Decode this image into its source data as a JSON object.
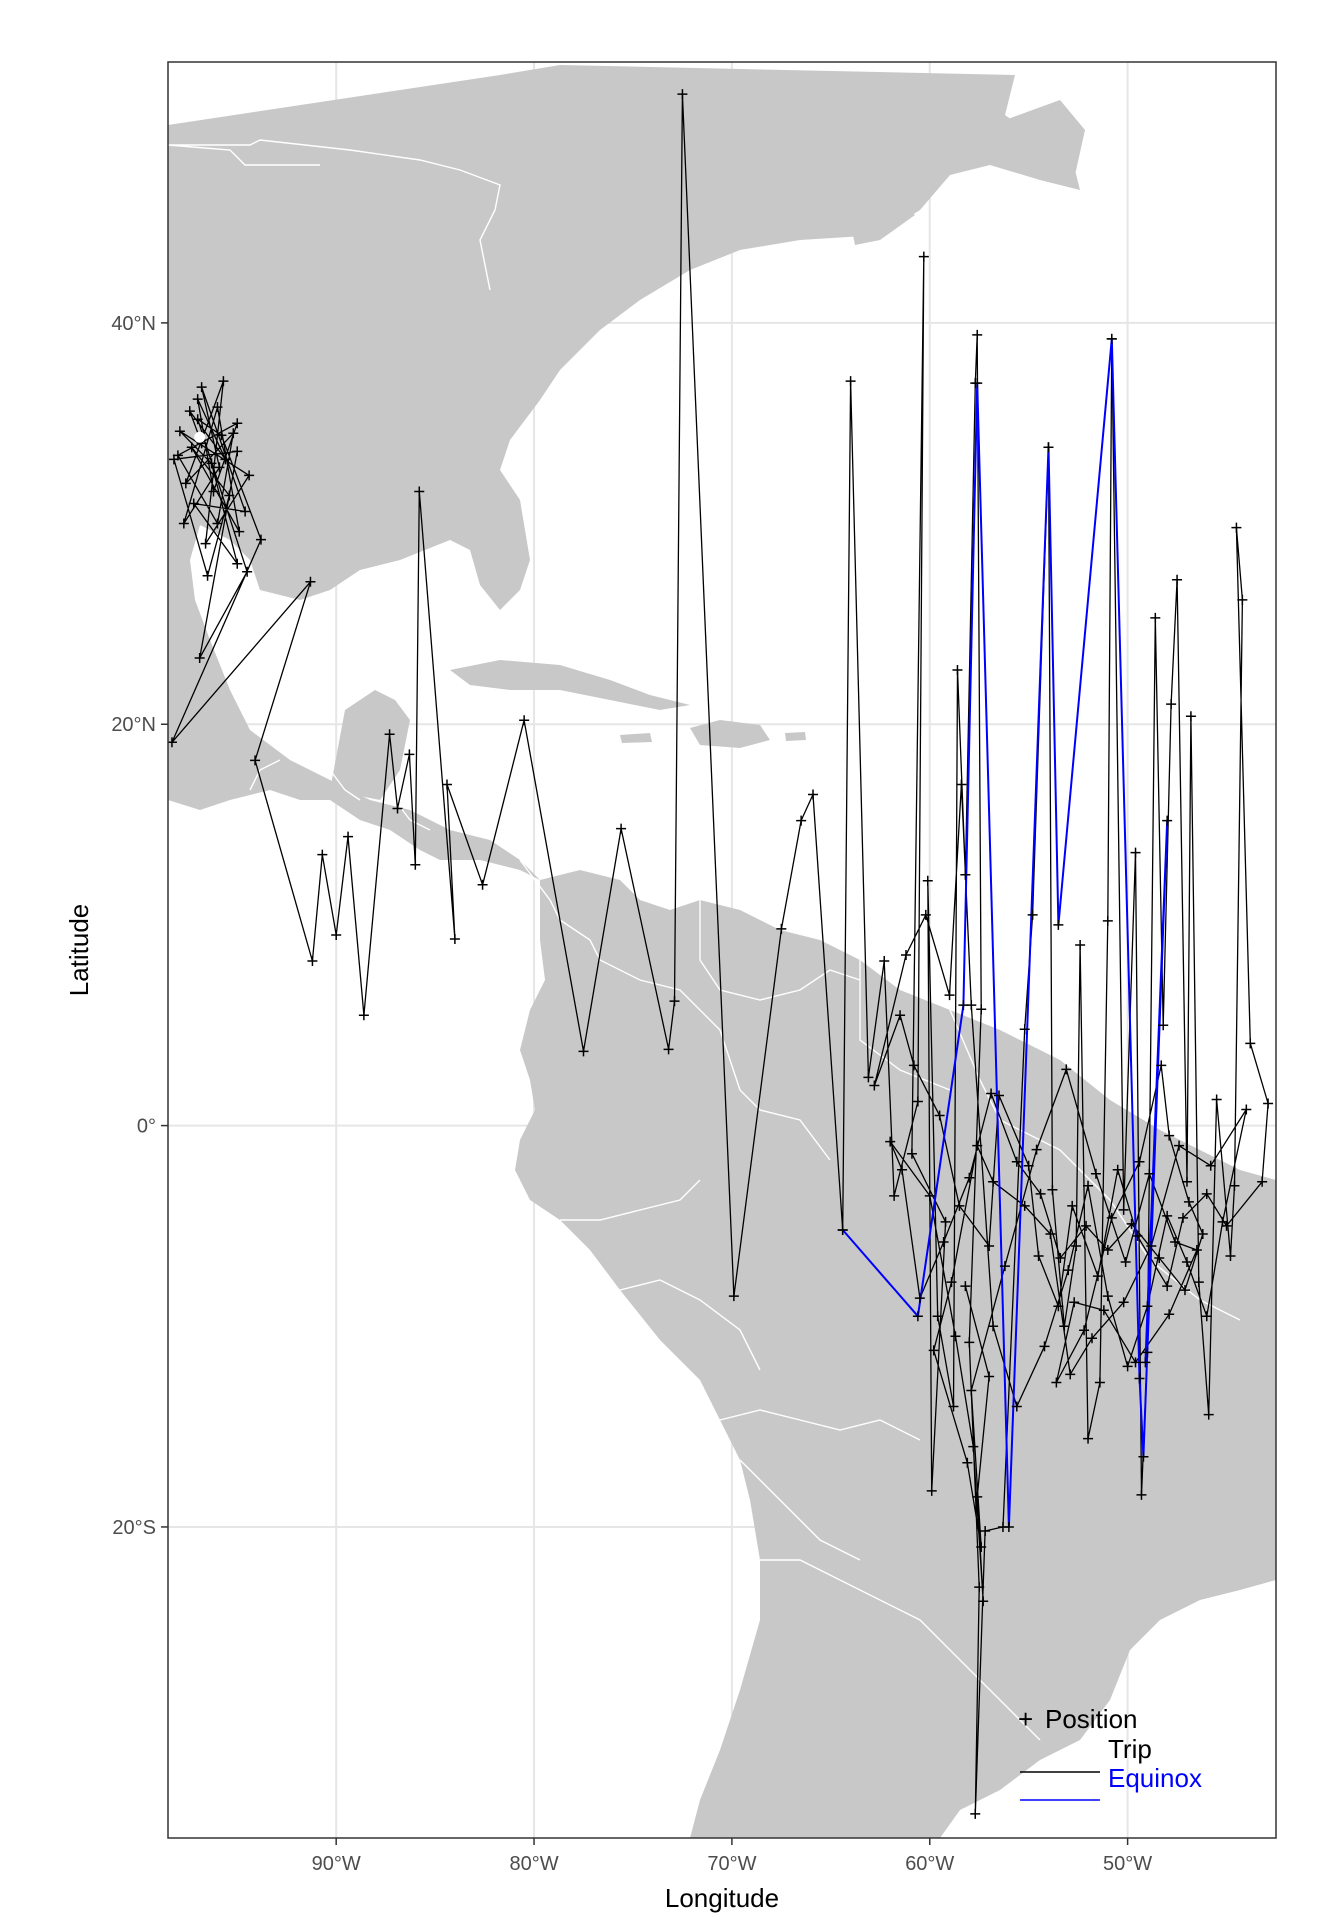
{
  "map": {
    "xlabel": "Longitude",
    "ylabel": "Latitude",
    "xlim": [
      -98.5,
      -42.5
    ],
    "ylim": [
      -35.5,
      53.0
    ],
    "x_ticks": [
      {
        "value": -90,
        "label": "90°W"
      },
      {
        "value": -80,
        "label": "80°W"
      },
      {
        "value": -70,
        "label": "70°W"
      },
      {
        "value": -60,
        "label": "60°W"
      },
      {
        "value": -50,
        "label": "50°W"
      }
    ],
    "y_ticks": [
      {
        "value": 40,
        "label": "40°N"
      },
      {
        "value": 20,
        "label": "20°N"
      },
      {
        "value": 0,
        "label": "0°"
      },
      {
        "value": -20,
        "label": "20°S"
      }
    ],
    "colors": {
      "land": "#c8c8c8",
      "border": "#ffffff",
      "grid": "#e6e6e6",
      "trip": "#000000",
      "equinox": "#0000ff",
      "deploy_marker": "#ffffff"
    },
    "legend": {
      "position": "bottom-right",
      "items": [
        {
          "label": "Position",
          "symbol": "+",
          "color": "#000000"
        },
        {
          "label": "Trip",
          "symbol": "line",
          "color": "#000000"
        },
        {
          "label": "Equinox",
          "symbol": "line",
          "color": "#0000ff"
        }
      ]
    }
  },
  "chart_data": {
    "type": "map-track",
    "deploy_site": [
      -96.9,
      34.3
    ],
    "track": [
      [
        -96.8,
        34.0
      ],
      [
        -97.4,
        35.6
      ],
      [
        -95.6,
        33.2
      ],
      [
        -97.0,
        36.2
      ],
      [
        -96.2,
        31.6
      ],
      [
        -95.0,
        35.0
      ],
      [
        -98.0,
        33.4
      ],
      [
        -96.0,
        30.0
      ],
      [
        -95.2,
        34.5
      ],
      [
        -97.6,
        32.0
      ],
      [
        -95.7,
        37.1
      ],
      [
        -96.6,
        29.0
      ],
      [
        -94.4,
        32.4
      ],
      [
        -97.9,
        34.6
      ],
      [
        -96.3,
        33.0
      ],
      [
        -95.0,
        28.0
      ],
      [
        -97.2,
        31.0
      ],
      [
        -94.6,
        30.6
      ],
      [
        -96.8,
        36.8
      ],
      [
        -95.9,
        32.8
      ],
      [
        -97.7,
        30.0
      ],
      [
        -96.0,
        35.8
      ],
      [
        -94.9,
        29.6
      ],
      [
        -97.3,
        33.8
      ],
      [
        -95.4,
        31.4
      ],
      [
        -96.5,
        27.4
      ],
      [
        -98.2,
        33.2
      ],
      [
        -95.0,
        33.6
      ],
      [
        -96.9,
        23.3
      ],
      [
        -94.5,
        27.6
      ],
      [
        -97.0,
        35.2
      ],
      [
        -95.8,
        34.4
      ],
      [
        -93.8,
        29.2
      ],
      [
        -98.3,
        19.1
      ],
      [
        -91.3,
        27.1
      ],
      [
        -94.1,
        18.2
      ],
      [
        -91.2,
        8.2
      ],
      [
        -90.7,
        13.5
      ],
      [
        -90.0,
        9.5
      ],
      [
        -89.4,
        14.4
      ],
      [
        -88.6,
        5.5
      ],
      [
        -87.3,
        19.5
      ],
      [
        -86.9,
        15.8
      ],
      [
        -86.3,
        18.5
      ],
      [
        -86.0,
        13.0
      ],
      [
        -85.8,
        31.6
      ],
      [
        -84.0,
        9.3
      ],
      [
        -84.4,
        17.0
      ],
      [
        -82.6,
        12.0
      ],
      [
        -80.5,
        20.2
      ],
      [
        -77.5,
        3.7
      ],
      [
        -75.6,
        14.8
      ],
      [
        -73.2,
        3.8
      ],
      [
        -72.9,
        6.2
      ],
      [
        -72.5,
        51.4
      ],
      [
        -69.9,
        -8.5
      ],
      [
        -67.5,
        9.8
      ],
      [
        -66.5,
        15.2
      ],
      [
        -65.9,
        16.5
      ],
      [
        -64.4,
        -5.2
      ],
      [
        -64.0,
        37.1
      ],
      [
        -63.1,
        2.4
      ],
      [
        -62.3,
        8.2
      ],
      [
        -61.8,
        -3.5
      ],
      [
        -60.6,
        1.2
      ],
      [
        -60.3,
        43.3
      ],
      [
        -60.9,
        -1.4
      ],
      [
        -59.2,
        -4.8
      ],
      [
        -59.9,
        -18.2
      ],
      [
        -60.1,
        12.2
      ],
      [
        -59.6,
        -9.5
      ],
      [
        -58.8,
        -14.0
      ],
      [
        -58.6,
        22.7
      ],
      [
        -58.2,
        12.5
      ],
      [
        -57.7,
        37.0
      ],
      [
        -57.6,
        39.4
      ],
      [
        -57.4,
        5.8
      ],
      [
        -58.0,
        -10.8
      ],
      [
        -57.5,
        -23.0
      ],
      [
        -57.7,
        -34.3
      ],
      [
        -57.2,
        -20.2
      ],
      [
        -56.3,
        -20.0
      ],
      [
        -55.2,
        4.8
      ],
      [
        -54.8,
        10.5
      ],
      [
        -54.0,
        33.8
      ],
      [
        -53.8,
        -3.2
      ],
      [
        -53.2,
        -10.0
      ],
      [
        -52.6,
        -6.0
      ],
      [
        -52.4,
        9.0
      ],
      [
        -52.0,
        -15.6
      ],
      [
        -51.4,
        -12.8
      ],
      [
        -51.0,
        10.2
      ],
      [
        -50.8,
        39.2
      ],
      [
        -50.2,
        -4.2
      ],
      [
        -49.6,
        13.6
      ],
      [
        -49.3,
        -18.4
      ],
      [
        -49.0,
        -11.3
      ],
      [
        -48.6,
        25.3
      ],
      [
        -48.2,
        5.0
      ],
      [
        -47.8,
        21.0
      ],
      [
        -47.5,
        27.2
      ],
      [
        -47.0,
        -2.8
      ],
      [
        -46.8,
        20.4
      ],
      [
        -46.4,
        -7.8
      ],
      [
        -45.9,
        -14.4
      ],
      [
        -45.5,
        1.3
      ],
      [
        -44.8,
        -6.5
      ],
      [
        -44.6,
        -3.0
      ],
      [
        -44.2,
        26.2
      ],
      [
        -44.5,
        29.8
      ],
      [
        -43.8,
        4.1
      ],
      [
        -42.9,
        1.1
      ],
      [
        -43.2,
        -2.8
      ],
      [
        -45.0,
        -5.0
      ],
      [
        -46.0,
        -3.4
      ],
      [
        -47.2,
        -4.6
      ],
      [
        -48.0,
        -8.0
      ],
      [
        -49.5,
        -5.5
      ],
      [
        -50.5,
        -2.2
      ],
      [
        -51.5,
        -7.5
      ],
      [
        -52.8,
        -4.0
      ],
      [
        -53.5,
        -9.0
      ],
      [
        -54.5,
        -6.5
      ],
      [
        -55.0,
        -2.0
      ],
      [
        -56.5,
        1.5
      ],
      [
        -57.0,
        -6.0
      ],
      [
        -58.5,
        -4.0
      ],
      [
        -59.5,
        0.5
      ],
      [
        -60.8,
        3.0
      ],
      [
        -61.5,
        5.5
      ],
      [
        -62.8,
        2.0
      ],
      [
        -61.2,
        8.5
      ],
      [
        -60.2,
        10.5
      ],
      [
        -59.0,
        6.5
      ],
      [
        -58.4,
        17.0
      ],
      [
        -57.9,
        6.0
      ],
      [
        -56.8,
        -10.0
      ],
      [
        -55.6,
        -14.0
      ],
      [
        -54.2,
        -11.0
      ],
      [
        -53.0,
        -7.2
      ],
      [
        -52.0,
        -3.0
      ],
      [
        -51.0,
        -8.5
      ],
      [
        -50.0,
        -12.0
      ],
      [
        -49.0,
        -9.0
      ],
      [
        -48.0,
        -4.5
      ],
      [
        -47.0,
        -6.8
      ],
      [
        -46.0,
        -9.5
      ],
      [
        -45.2,
        -4.8
      ],
      [
        -44.0,
        0.8
      ],
      [
        -45.8,
        -2.0
      ],
      [
        -47.4,
        -1.0
      ],
      [
        -48.8,
        -6.0
      ],
      [
        -50.2,
        -8.8
      ],
      [
        -51.8,
        -10.6
      ],
      [
        -52.9,
        -12.4
      ],
      [
        -53.9,
        -5.4
      ],
      [
        -55.2,
        -4.0
      ],
      [
        -56.8,
        -2.8
      ],
      [
        -57.6,
        -1.0
      ],
      [
        -58.9,
        -7.8
      ],
      [
        -59.8,
        -11.2
      ],
      [
        -58.1,
        -16.8
      ],
      [
        -57.4,
        -21.0
      ],
      [
        -57.9,
        -13.2
      ],
      [
        -56.2,
        -7.0
      ],
      [
        -54.6,
        -1.2
      ],
      [
        -53.1,
        2.8
      ],
      [
        -51.6,
        -2.4
      ],
      [
        -50.1,
        -6.8
      ],
      [
        -48.9,
        -2.4
      ],
      [
        -47.6,
        -5.8
      ],
      [
        -46.5,
        -6.2
      ],
      [
        -47.9,
        -9.4
      ],
      [
        -49.6,
        -11.8
      ],
      [
        -51.2,
        -9.2
      ],
      [
        -52.7,
        -8.8
      ],
      [
        -53.6,
        -12.8
      ],
      [
        -52.2,
        -10.2
      ],
      [
        -50.8,
        -4.6
      ],
      [
        -49.4,
        -1.8
      ],
      [
        -48.3,
        3.0
      ],
      [
        -47.9,
        -0.5
      ],
      [
        -46.9,
        -3.8
      ],
      [
        -46.2,
        -5.4
      ],
      [
        -47.1,
        -8.2
      ],
      [
        -48.4,
        -6.6
      ],
      [
        -49.8,
        -4.9
      ],
      [
        -51.0,
        -6.2
      ],
      [
        -52.1,
        -5.0
      ],
      [
        -53.4,
        -6.6
      ],
      [
        -54.4,
        -3.4
      ],
      [
        -55.6,
        -1.8
      ],
      [
        -56.9,
        1.6
      ],
      [
        -58.0,
        -2.6
      ],
      [
        -59.3,
        -5.8
      ],
      [
        -60.5,
        -8.6
      ],
      [
        -61.4,
        -2.2
      ],
      [
        -62.0,
        -0.8
      ],
      [
        -60.0,
        -3.5
      ],
      [
        -58.7,
        -10.5
      ],
      [
        -57.8,
        -16.0
      ],
      [
        -57.3,
        -23.7
      ],
      [
        -57.6,
        -18.5
      ],
      [
        -57.0,
        -12.5
      ],
      [
        -58.2,
        -8.0
      ]
    ],
    "equinox_track": [
      [
        -64.4,
        -5.2
      ],
      [
        -60.6,
        -9.5
      ],
      [
        -58.3,
        6.0
      ],
      [
        -57.6,
        37.0
      ],
      [
        -56.0,
        -20.0
      ],
      [
        -54.0,
        33.8
      ],
      [
        -53.5,
        10.0
      ],
      [
        -50.8,
        39.2
      ],
      [
        -49.4,
        -12.6
      ],
      [
        -49.2,
        -16.5
      ],
      [
        -48.0,
        15.2
      ],
      [
        -49.1,
        -11.8
      ]
    ]
  }
}
